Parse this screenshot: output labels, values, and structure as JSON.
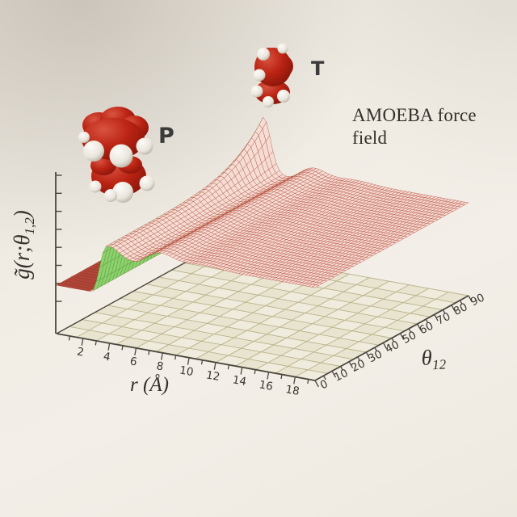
{
  "annotations": {
    "force_field": "AMOEBA force field",
    "label_p": "P",
    "label_t": "T"
  },
  "chart_data": {
    "type": "surface3d",
    "title": "",
    "description": "Photographed 3D mesh surface of the angle-dependent pair distribution function g-tilde(r;theta_1,2) computed with the AMOEBA force field. Surface is ~0 for r < 3 Angstrom, has a sharp first-shell ridge near r = 4 Angstrom whose height grows from ~1.1 at theta=0 to ~2.1 at theta=90 (tall fin peak), a weak second ripple near r = 8 Angstrom, and flattens to g = 1 at large r. Green shading is the underside of the steep rising flank; the flat g=0 plateau renders solid dark red.",
    "axes": {
      "x": {
        "label": "r (Å)",
        "range": [
          0,
          19.5
        ],
        "tick_labels": [
          2,
          4,
          6,
          8,
          10,
          12,
          14,
          16,
          18
        ],
        "minor_step": 1
      },
      "y": {
        "label_pre": "θ",
        "label_sub": "12",
        "range": [
          0,
          90
        ],
        "tick_labels": [
          0,
          10,
          20,
          30,
          40,
          50,
          60,
          70,
          80,
          90
        ],
        "minor_step": 5
      },
      "z": {
        "label_pre": "g̃(r;θ",
        "label_sub": "1,2",
        "label_post": ")",
        "range": [
          0,
          2.5
        ],
        "unlabeled_tick_count": 8
      }
    },
    "surface_model": {
      "r_max": 19.5,
      "rise_start": 2.65,
      "rise_width": 1.1,
      "peak1_r": 4.05,
      "peak1_sigma": 0.5,
      "peak1_amp_base": 0.1,
      "peak1_amp_gain": 1.0,
      "peak1_amp_pow": 5,
      "dip_r": 5.9,
      "dip_amp": 0.16,
      "dip_sigma": 0.8,
      "peak2_r": 7.8,
      "peak2_amp": 0.16,
      "peak2_sigma": 0.85,
      "peak3_r": 11.0,
      "peak3_amp": 0.05,
      "peak3_sigma": 1.2,
      "flat_value": 1.0,
      "peak_value_at_90": 2.1
    },
    "colors": {
      "mesh_line": "#b23c2c",
      "mesh_fill": "#f4ddd4",
      "underside_fill": "#8ed06e",
      "underside_line": "#4e9a34",
      "plateau_fill": "#b34a3c",
      "plateau_line": "#a03a2e",
      "axis": "#4b473d",
      "tick_text": "#3b372e",
      "grid_line": "#b9b28a",
      "floor_a": "#f0ecdd",
      "floor_b": "#e5dfc8",
      "molecule_red": "#bb2414",
      "molecule_white": "#efebe2"
    },
    "legend": null,
    "grid": true
  }
}
